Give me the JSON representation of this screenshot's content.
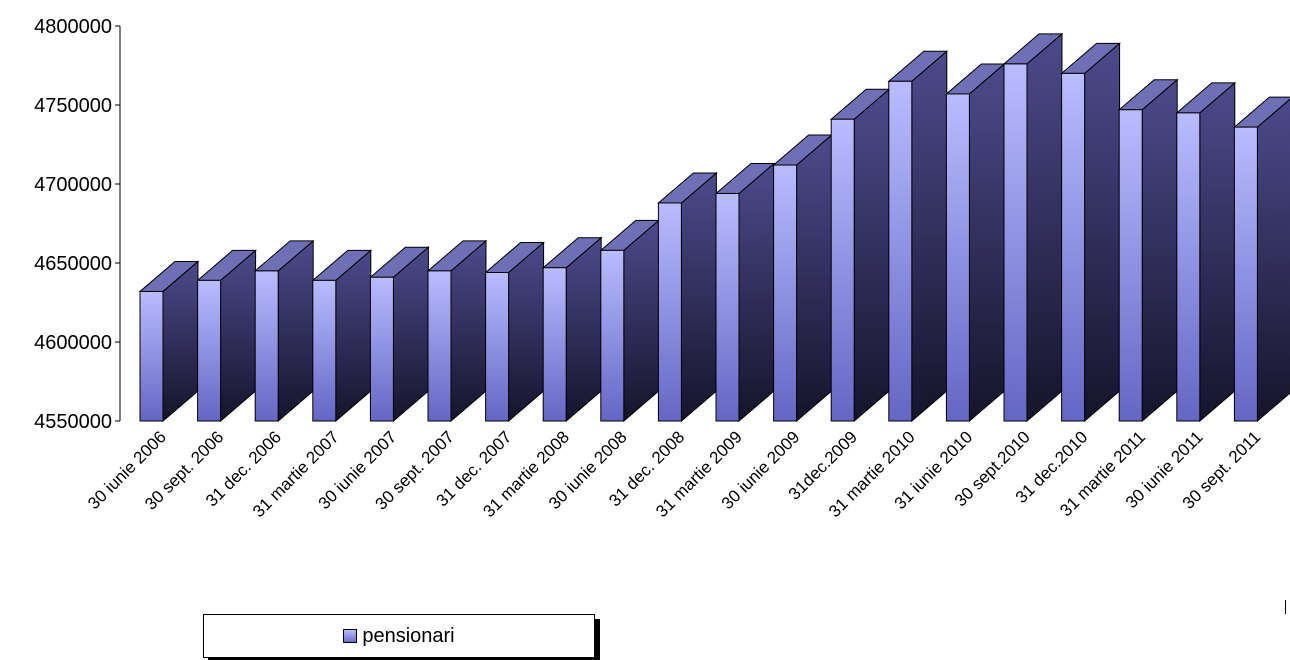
{
  "chart_data": {
    "type": "bar",
    "categories": [
      "30 iunie 2006",
      "30 sept. 2006",
      "31 dec. 2006",
      "31 martie 2007",
      "30 iunie 2007",
      "30 sept. 2007",
      "31 dec. 2007",
      "31 martie 2008",
      "30 iunie 2008",
      "31 dec. 2008",
      "31 martie 2009",
      "30 iunie 2009",
      "31dec.2009",
      "31 martie 2010",
      "31 iunie 2010",
      "30 sept.2010",
      "31 dec.2010",
      "31 martie 2011",
      "30 iunie 2011",
      "30 sept. 2011"
    ],
    "series": [
      {
        "name": "pensionari",
        "values": [
          4632000,
          4639000,
          4645000,
          4639000,
          4641000,
          4645000,
          4644000,
          4647000,
          4658000,
          4688000,
          4694000,
          4712000,
          4741000,
          4765000,
          4757000,
          4776000,
          4770000,
          4747000,
          4745000,
          4736000
        ]
      }
    ],
    "yticks": [
      "4550000",
      "4600000",
      "4650000",
      "4700000",
      "4750000",
      "4800000"
    ],
    "ylim": [
      4550000,
      4800000
    ],
    "legend_position": "bottom-left",
    "colors": {
      "front_top": "#b9bcff",
      "front_bottom": "#6466c4",
      "side_top": "#4d4a8c",
      "side_bottom": "#15142a",
      "top_face": "#6f6fb5"
    }
  }
}
